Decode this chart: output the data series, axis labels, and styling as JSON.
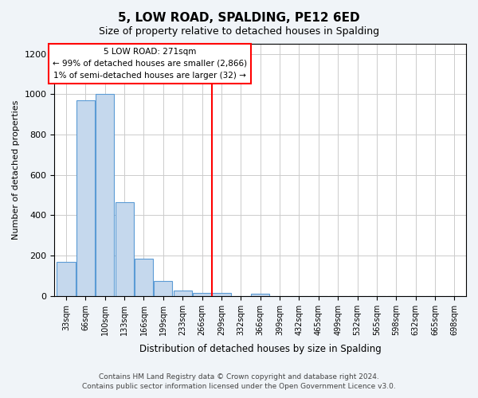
{
  "title": "5, LOW ROAD, SPALDING, PE12 6ED",
  "subtitle": "Size of property relative to detached houses in Spalding",
  "xlabel": "Distribution of detached houses by size in Spalding",
  "ylabel": "Number of detached properties",
  "bin_labels": [
    "33sqm",
    "66sqm",
    "100sqm",
    "133sqm",
    "166sqm",
    "199sqm",
    "233sqm",
    "266sqm",
    "299sqm",
    "332sqm",
    "366sqm",
    "399sqm",
    "432sqm",
    "465sqm",
    "499sqm",
    "532sqm",
    "565sqm",
    "598sqm",
    "632sqm",
    "665sqm",
    "698sqm"
  ],
  "bar_values": [
    170,
    970,
    1000,
    465,
    185,
    75,
    25,
    15,
    15,
    0,
    10,
    0,
    0,
    0,
    0,
    0,
    0,
    0,
    0,
    0,
    0
  ],
  "bar_color": "#c5d8ed",
  "bar_edge_color": "#5b9bd5",
  "reference_line_x": 7.5,
  "reference_line_color": "red",
  "annotation_line1": "5 LOW ROAD: 271sqm",
  "annotation_line2": "← 99% of detached houses are smaller (2,866)",
  "annotation_line3": "1% of semi-detached houses are larger (32) →",
  "annotation_box_edge_color": "red",
  "ylim": [
    0,
    1250
  ],
  "yticks": [
    0,
    200,
    400,
    600,
    800,
    1000,
    1200
  ],
  "footer_line1": "Contains HM Land Registry data © Crown copyright and database right 2024.",
  "footer_line2": "Contains public sector information licensed under the Open Government Licence v3.0.",
  "background_color": "#f0f4f8",
  "plot_background_color": "#ffffff",
  "grid_color": "#cccccc"
}
